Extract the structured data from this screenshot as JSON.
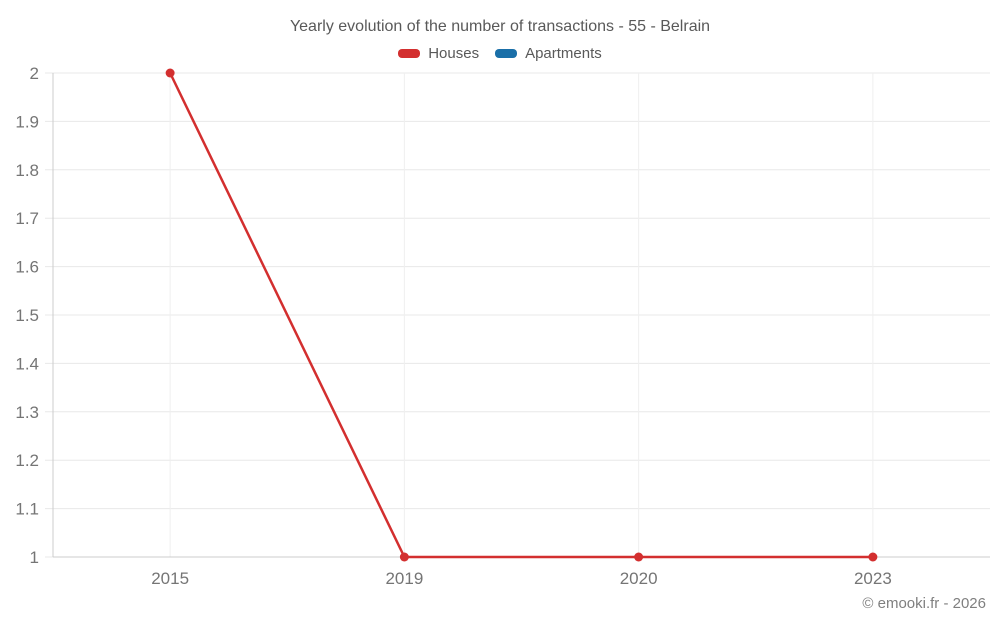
{
  "chart_data": {
    "type": "line",
    "title": "Yearly evolution of the number of transactions - 55 - Belrain",
    "categories": [
      "2015",
      "2019",
      "2020",
      "2023"
    ],
    "series": [
      {
        "name": "Houses",
        "color": "#d32f2f",
        "values": [
          2,
          1,
          1,
          1
        ]
      },
      {
        "name": "Apartments",
        "color": "#1a6fa8",
        "values": [
          null,
          null,
          null,
          null
        ]
      }
    ],
    "ylim": [
      1,
      2
    ],
    "ytick_step": 0.1,
    "yticks": [
      "1",
      "1.1",
      "1.2",
      "1.3",
      "1.4",
      "1.5",
      "1.6",
      "1.7",
      "1.8",
      "1.9",
      "2"
    ],
    "grid": true,
    "legend_position": "top",
    "marker": "circle",
    "xlabel": "",
    "ylabel": ""
  },
  "footer": {
    "credit": "© emooki.fr - 2026"
  },
  "colors": {
    "background": "#ffffff",
    "grid_h": "#e8e8e8",
    "grid_v": "#efefef",
    "axis": "#cccccc",
    "tick_label": "#757575",
    "title_text": "#595959",
    "footer_text": "#7f7f7f"
  }
}
